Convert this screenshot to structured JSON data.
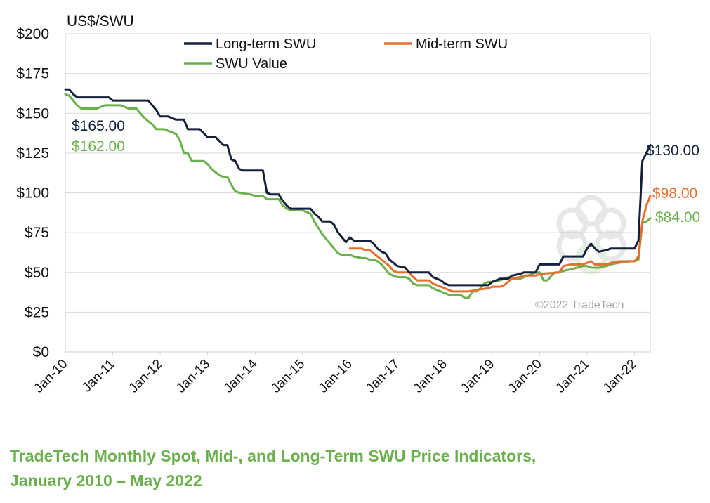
{
  "chart_data": {
    "type": "line",
    "title": "",
    "ylabel": "US$/SWU",
    "ylim": [
      0,
      200
    ],
    "y_ticks": [
      "$0",
      "$25",
      "$50",
      "$75",
      "$100",
      "$125",
      "$150",
      "$175",
      "$200"
    ],
    "x_ticks": [
      "Jan-10",
      "Jan-11",
      "Jan-12",
      "Jan-13",
      "Jan-14",
      "Jan-15",
      "Jan-16",
      "Jan-17",
      "Jan-18",
      "Jan-19",
      "Jan-20",
      "Jan-21",
      "Jan-22"
    ],
    "x_range": [
      "2010-01",
      "2022-05"
    ],
    "grid": "horizontal",
    "legend": "top",
    "series": [
      {
        "name": "Long-term SWU",
        "color": "#14213d",
        "points": [
          [
            "2010-01",
            165
          ],
          [
            "2010-02",
            165
          ],
          [
            "2010-03",
            162
          ],
          [
            "2010-04",
            160
          ],
          [
            "2010-06",
            160
          ],
          [
            "2010-09",
            160
          ],
          [
            "2010-12",
            160
          ],
          [
            "2011-01",
            158
          ],
          [
            "2011-04",
            158
          ],
          [
            "2011-07",
            158
          ],
          [
            "2011-10",
            158
          ],
          [
            "2011-11",
            155
          ],
          [
            "2011-12",
            152
          ],
          [
            "2012-01",
            148
          ],
          [
            "2012-03",
            148
          ],
          [
            "2012-04",
            147
          ],
          [
            "2012-05",
            146
          ],
          [
            "2012-07",
            146
          ],
          [
            "2012-08",
            140
          ],
          [
            "2012-10",
            140
          ],
          [
            "2012-11",
            140
          ],
          [
            "2013-01",
            135
          ],
          [
            "2013-03",
            135
          ],
          [
            "2013-05",
            130
          ],
          [
            "2013-06",
            130
          ],
          [
            "2013-07",
            121
          ],
          [
            "2013-08",
            120
          ],
          [
            "2013-09",
            115
          ],
          [
            "2013-10",
            114
          ],
          [
            "2013-12",
            114
          ],
          [
            "2014-01",
            114
          ],
          [
            "2014-03",
            114
          ],
          [
            "2014-04",
            100
          ],
          [
            "2014-05",
            99
          ],
          [
            "2014-07",
            99
          ],
          [
            "2014-08",
            95
          ],
          [
            "2014-09",
            92
          ],
          [
            "2014-10",
            90
          ],
          [
            "2014-12",
            90
          ],
          [
            "2015-01",
            90
          ],
          [
            "2015-03",
            90
          ],
          [
            "2015-04",
            87
          ],
          [
            "2015-05",
            85
          ],
          [
            "2015-06",
            82
          ],
          [
            "2015-08",
            82
          ],
          [
            "2015-09",
            80
          ],
          [
            "2015-10",
            75
          ],
          [
            "2015-11",
            72
          ],
          [
            "2015-12",
            69
          ],
          [
            "2016-01",
            72
          ],
          [
            "2016-02",
            70
          ],
          [
            "2016-04",
            70
          ],
          [
            "2016-06",
            70
          ],
          [
            "2016-07",
            68
          ],
          [
            "2016-08",
            65
          ],
          [
            "2016-09",
            63
          ],
          [
            "2016-10",
            62
          ],
          [
            "2016-11",
            58
          ],
          [
            "2017-01",
            54
          ],
          [
            "2017-03",
            53
          ],
          [
            "2017-04",
            50
          ],
          [
            "2017-06",
            50
          ],
          [
            "2017-09",
            50
          ],
          [
            "2017-10",
            47
          ],
          [
            "2017-11",
            46
          ],
          [
            "2017-12",
            45
          ],
          [
            "2018-01",
            43
          ],
          [
            "2018-02",
            42
          ],
          [
            "2018-06",
            42
          ],
          [
            "2018-09",
            42
          ],
          [
            "2018-12",
            42
          ],
          [
            "2019-01",
            44
          ],
          [
            "2019-03",
            46
          ],
          [
            "2019-05",
            46
          ],
          [
            "2019-06",
            48
          ],
          [
            "2019-08",
            49
          ],
          [
            "2019-09",
            50
          ],
          [
            "2019-12",
            50
          ],
          [
            "2020-01",
            55
          ],
          [
            "2020-03",
            55
          ],
          [
            "2020-06",
            55
          ],
          [
            "2020-07",
            60
          ],
          [
            "2020-09",
            60
          ],
          [
            "2020-12",
            60
          ],
          [
            "2021-01",
            65
          ],
          [
            "2021-02",
            68
          ],
          [
            "2021-03",
            65
          ],
          [
            "2021-04",
            63
          ],
          [
            "2021-06",
            64
          ],
          [
            "2021-07",
            65
          ],
          [
            "2021-12",
            65
          ],
          [
            "2022-01",
            65
          ],
          [
            "2022-02",
            70
          ],
          [
            "2022-03",
            120
          ],
          [
            "2022-04",
            125
          ],
          [
            "2022-05",
            130
          ]
        ]
      },
      {
        "name": "Mid-term SWU",
        "color": "#e76f2e",
        "points": [
          [
            "2016-01",
            65
          ],
          [
            "2016-04",
            65
          ],
          [
            "2016-05",
            64
          ],
          [
            "2016-06",
            64
          ],
          [
            "2016-07",
            62
          ],
          [
            "2016-09",
            58
          ],
          [
            "2016-10",
            56
          ],
          [
            "2016-11",
            54
          ],
          [
            "2016-12",
            51
          ],
          [
            "2017-01",
            50
          ],
          [
            "2017-04",
            50
          ],
          [
            "2017-05",
            47
          ],
          [
            "2017-06",
            45
          ],
          [
            "2017-09",
            45
          ],
          [
            "2017-10",
            43
          ],
          [
            "2017-12",
            41
          ],
          [
            "2018-01",
            40
          ],
          [
            "2018-02",
            39
          ],
          [
            "2018-03",
            38
          ],
          [
            "2018-06",
            38
          ],
          [
            "2018-07",
            38
          ],
          [
            "2018-09",
            39
          ],
          [
            "2018-12",
            40
          ],
          [
            "2019-01",
            41
          ],
          [
            "2019-03",
            41
          ],
          [
            "2019-04",
            42
          ],
          [
            "2019-05",
            44
          ],
          [
            "2019-06",
            46
          ],
          [
            "2019-08",
            47
          ],
          [
            "2019-09",
            48
          ],
          [
            "2019-12",
            48
          ],
          [
            "2020-01",
            49
          ],
          [
            "2020-06",
            50
          ],
          [
            "2020-07",
            54
          ],
          [
            "2020-09",
            55
          ],
          [
            "2020-12",
            55
          ],
          [
            "2021-01",
            56
          ],
          [
            "2021-02",
            57
          ],
          [
            "2021-03",
            55
          ],
          [
            "2021-06",
            55
          ],
          [
            "2021-07",
            56
          ],
          [
            "2021-09",
            57
          ],
          [
            "2021-12",
            57
          ],
          [
            "2022-01",
            57
          ],
          [
            "2022-02",
            60
          ],
          [
            "2022-03",
            82
          ],
          [
            "2022-04",
            92
          ],
          [
            "2022-05",
            98
          ]
        ]
      },
      {
        "name": "SWU Value",
        "color": "#6ab04c",
        "points": [
          [
            "2010-01",
            162
          ],
          [
            "2010-02",
            161
          ],
          [
            "2010-03",
            158
          ],
          [
            "2010-04",
            155
          ],
          [
            "2010-05",
            153
          ],
          [
            "2010-06",
            153
          ],
          [
            "2010-09",
            153
          ],
          [
            "2010-11",
            155
          ],
          [
            "2010-12",
            155
          ],
          [
            "2011-01",
            155
          ],
          [
            "2011-03",
            155
          ],
          [
            "2011-04",
            154
          ],
          [
            "2011-05",
            153
          ],
          [
            "2011-07",
            153
          ],
          [
            "2011-08",
            150
          ],
          [
            "2011-09",
            147
          ],
          [
            "2011-10",
            145
          ],
          [
            "2011-11",
            143
          ],
          [
            "2011-12",
            140
          ],
          [
            "2012-01",
            140
          ],
          [
            "2012-02",
            140
          ],
          [
            "2012-03",
            139
          ],
          [
            "2012-04",
            138
          ],
          [
            "2012-05",
            137
          ],
          [
            "2012-06",
            133
          ],
          [
            "2012-07",
            125
          ],
          [
            "2012-08",
            125
          ],
          [
            "2012-09",
            120
          ],
          [
            "2012-12",
            120
          ],
          [
            "2013-01",
            118
          ],
          [
            "2013-02",
            115
          ],
          [
            "2013-03",
            113
          ],
          [
            "2013-04",
            111
          ],
          [
            "2013-05",
            110
          ],
          [
            "2013-06",
            110
          ],
          [
            "2013-07",
            105
          ],
          [
            "2013-08",
            101
          ],
          [
            "2013-09",
            100
          ],
          [
            "2013-12",
            99
          ],
          [
            "2014-01",
            98
          ],
          [
            "2014-03",
            98
          ],
          [
            "2014-04",
            96
          ],
          [
            "2014-05",
            96
          ],
          [
            "2014-07",
            96
          ],
          [
            "2014-08",
            92
          ],
          [
            "2014-09",
            90
          ],
          [
            "2014-10",
            89
          ],
          [
            "2014-12",
            89
          ],
          [
            "2015-01",
            89
          ],
          [
            "2015-02",
            88
          ],
          [
            "2015-03",
            87
          ],
          [
            "2015-04",
            82
          ],
          [
            "2015-05",
            78
          ],
          [
            "2015-06",
            74
          ],
          [
            "2015-07",
            71
          ],
          [
            "2015-08",
            68
          ],
          [
            "2015-09",
            65
          ],
          [
            "2015-10",
            62
          ],
          [
            "2015-11",
            61
          ],
          [
            "2015-12",
            61
          ],
          [
            "2016-01",
            61
          ],
          [
            "2016-02",
            60
          ],
          [
            "2016-04",
            59
          ],
          [
            "2016-05",
            59
          ],
          [
            "2016-06",
            58
          ],
          [
            "2016-07",
            58
          ],
          [
            "2016-08",
            57
          ],
          [
            "2016-09",
            55
          ],
          [
            "2016-10",
            52
          ],
          [
            "2016-11",
            49
          ],
          [
            "2016-12",
            48
          ],
          [
            "2017-01",
            47
          ],
          [
            "2017-03",
            47
          ],
          [
            "2017-04",
            46
          ],
          [
            "2017-05",
            43
          ],
          [
            "2017-06",
            42
          ],
          [
            "2017-09",
            42
          ],
          [
            "2017-10",
            40
          ],
          [
            "2017-11",
            39
          ],
          [
            "2017-12",
            38
          ],
          [
            "2018-01",
            37
          ],
          [
            "2018-02",
            36
          ],
          [
            "2018-04",
            36
          ],
          [
            "2018-05",
            36
          ],
          [
            "2018-06",
            34
          ],
          [
            "2018-07",
            34
          ],
          [
            "2018-08",
            38
          ],
          [
            "2018-09",
            38
          ],
          [
            "2018-10",
            40
          ],
          [
            "2018-11",
            43
          ],
          [
            "2018-12",
            44
          ],
          [
            "2019-01",
            44
          ],
          [
            "2019-03",
            45
          ],
          [
            "2019-04",
            46
          ],
          [
            "2019-05",
            47
          ],
          [
            "2019-06",
            46
          ],
          [
            "2019-08",
            46
          ],
          [
            "2019-09",
            47
          ],
          [
            "2019-12",
            50
          ],
          [
            "2020-01",
            50
          ],
          [
            "2020-02",
            45
          ],
          [
            "2020-03",
            45
          ],
          [
            "2020-04",
            48
          ],
          [
            "2020-05",
            50
          ],
          [
            "2020-06",
            50
          ],
          [
            "2020-07",
            51
          ],
          [
            "2020-09",
            52
          ],
          [
            "2020-12",
            54
          ],
          [
            "2021-01",
            54
          ],
          [
            "2021-02",
            53
          ],
          [
            "2021-03",
            53
          ],
          [
            "2021-04",
            53
          ],
          [
            "2021-06",
            54
          ],
          [
            "2021-07",
            55
          ],
          [
            "2021-09",
            56
          ],
          [
            "2021-12",
            57
          ],
          [
            "2022-01",
            57
          ],
          [
            "2022-02",
            58
          ],
          [
            "2022-03",
            81
          ],
          [
            "2022-04",
            82
          ],
          [
            "2022-05",
            84
          ]
        ]
      }
    ],
    "annotations": [
      {
        "text": "$165.00",
        "series": "Long-term SWU",
        "color": "#14213d"
      },
      {
        "text": "$162.00",
        "series": "SWU Value",
        "color": "#6ab04c"
      },
      {
        "text": "$130.00",
        "series": "Long-term SWU",
        "color": "#14213d"
      },
      {
        "text": "$98.00",
        "series": "Mid-term SWU",
        "color": "#e76f2e"
      },
      {
        "text": "$84.00",
        "series": "SWU Value",
        "color": "#6ab04c"
      }
    ],
    "copyright": "©2022 TradeTech"
  },
  "caption": {
    "line1": "TradeTech Monthly Spot, Mid-, and Long-Term SWU  Price Indicators,",
    "line2": "January 2010 – May 2022"
  }
}
